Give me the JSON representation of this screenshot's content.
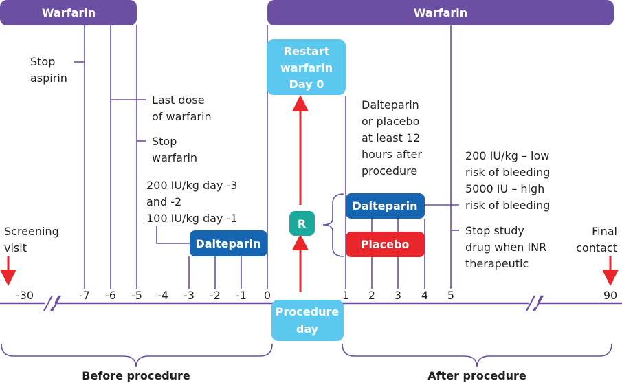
{
  "top_bars": {
    "left": "Warfarin",
    "right": "Warfarin"
  },
  "boxes": {
    "restart": [
      "Restart",
      "warfarin",
      "Day 0"
    ],
    "procedure": [
      "Procedure",
      "day"
    ],
    "randomize": "R",
    "dalteparin_pre": "Dalteparin",
    "dalteparin_post": "Dalteparin",
    "placebo": "Placebo"
  },
  "annotations": {
    "stop_aspirin": [
      "Stop",
      "aspirin"
    ],
    "last_dose": [
      "Last dose",
      "of warfarin"
    ],
    "stop_warfarin": [
      "Stop",
      "warfarin"
    ],
    "pre_dose": [
      "200 IU/kg day -3",
      "and -2",
      "100 IU/kg day -1"
    ],
    "screening": [
      "Screening",
      "visit"
    ],
    "post_timing": [
      "Dalteparin",
      "or placebo",
      "at least 12",
      "hours after",
      "procedure"
    ],
    "post_dose": [
      "200 IU/kg – low",
      "risk of bleeding",
      "5000 IU – high",
      "risk of bleeding"
    ],
    "stop_study": [
      "Stop study",
      "drug when INR",
      "therapeutic"
    ],
    "final": [
      "Final",
      "contact"
    ]
  },
  "ticks": [
    "-30",
    "-7",
    "-6",
    "-5",
    "-4",
    "-3",
    "-2",
    "-1",
    "0",
    "1",
    "2",
    "3",
    "4",
    "5",
    "90"
  ],
  "phases": {
    "before": "Before procedure",
    "after": "After procedure"
  },
  "colors": {
    "purple": "#6a4fa3",
    "dark_blue": "#1565b0",
    "red": "#e8262b",
    "teal": "#1aa99b",
    "light_blue": "#5bc8f0"
  }
}
